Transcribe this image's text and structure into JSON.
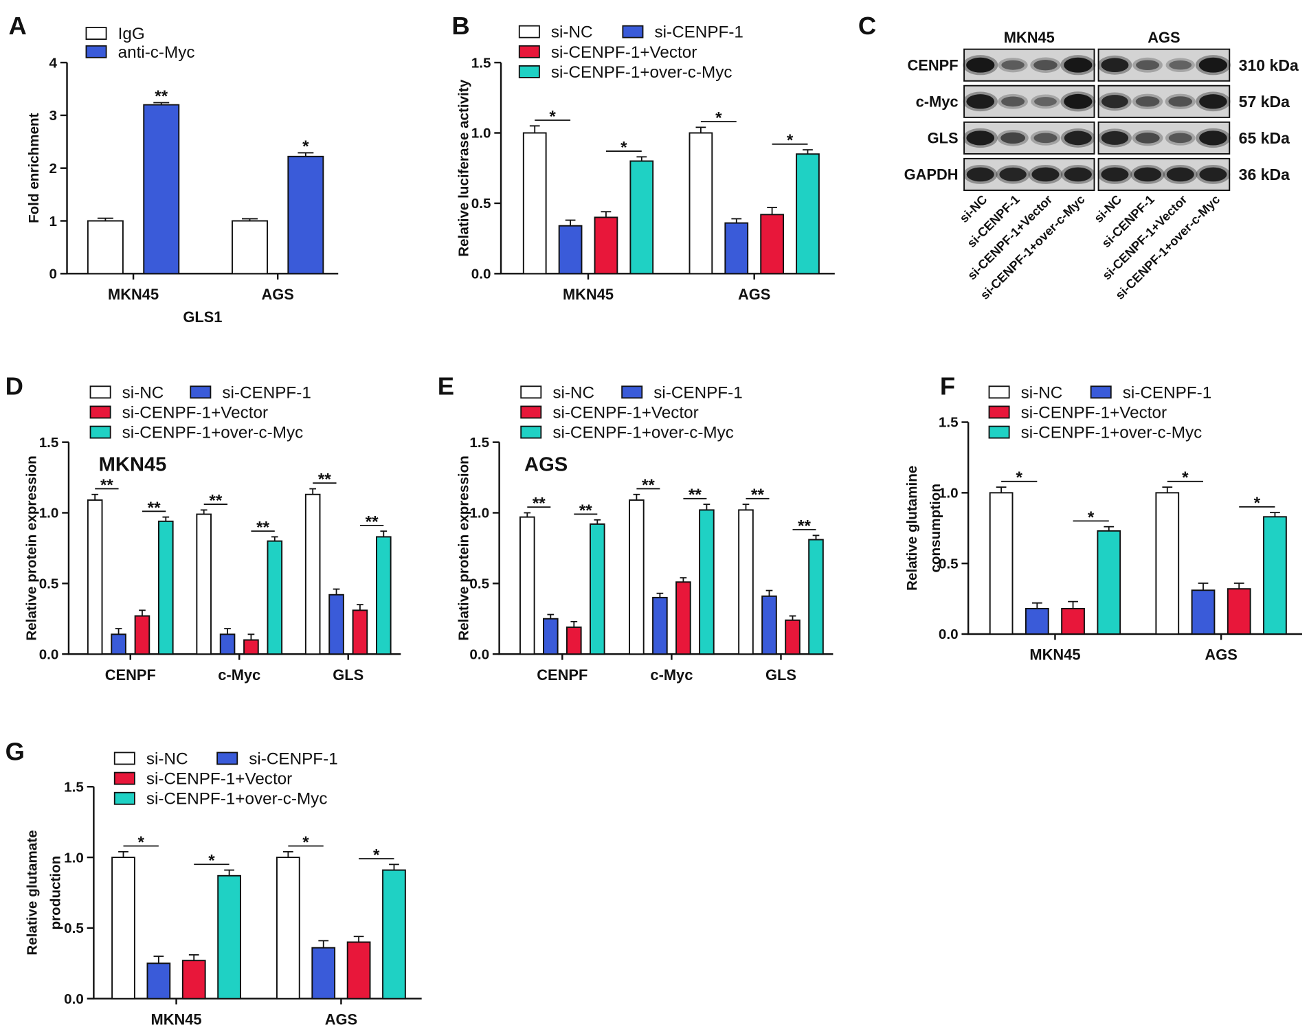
{
  "chart_data": [
    {
      "panel": "A",
      "type": "bar",
      "ylabel": [
        "Fold enrichment"
      ],
      "xlabel": "GLS1",
      "ylim": [
        0,
        4
      ],
      "yticks": [
        0,
        1,
        2,
        3,
        4
      ],
      "ytick_labels": [
        "0",
        "1",
        "2",
        "3",
        "4"
      ],
      "categories": [
        "MKN45",
        "AGS"
      ],
      "series": [
        {
          "name": "IgG",
          "color": "#ffffff",
          "values": [
            1.0,
            1.0
          ],
          "errors": [
            0.05,
            0.04
          ]
        },
        {
          "name": "anti-c-Myc",
          "color": "#3a5bd9",
          "values": [
            3.2,
            2.22
          ],
          "errors": [
            0.04,
            0.07
          ]
        }
      ],
      "significance": [
        {
          "category": 0,
          "bars": [
            1
          ],
          "label": "**"
        },
        {
          "category": 1,
          "bars": [
            1
          ],
          "label": "*"
        }
      ],
      "legend": "top-left",
      "grid": false
    },
    {
      "panel": "B",
      "type": "bar",
      "ylabel": [
        "Relative luciferase activity"
      ],
      "ylim": [
        0,
        1.5
      ],
      "yticks": [
        0,
        0.5,
        1.0,
        1.5
      ],
      "ytick_labels": [
        "0.0",
        "0.5",
        "1.0",
        "1.5"
      ],
      "categories": [
        "MKN45",
        "AGS"
      ],
      "series": [
        {
          "name": "si-NC",
          "color": "#ffffff",
          "values": [
            1.0,
            1.0
          ],
          "errors": [
            0.05,
            0.04
          ]
        },
        {
          "name": "si-CENPF-1",
          "color": "#3a5bd9",
          "values": [
            0.34,
            0.36
          ],
          "errors": [
            0.04,
            0.03
          ]
        },
        {
          "name": "si-CENPF-1+Vector",
          "color": "#e8173a",
          "values": [
            0.4,
            0.42
          ],
          "errors": [
            0.04,
            0.05
          ]
        },
        {
          "name": "si-CENPF-1+over-c-Myc",
          "color": "#1fd1c4",
          "values": [
            0.8,
            0.85
          ],
          "errors": [
            0.03,
            0.03
          ]
        }
      ],
      "significance": [
        {
          "category": 0,
          "bars": [
            0,
            1
          ],
          "label": "*"
        },
        {
          "category": 0,
          "bars": [
            2,
            3
          ],
          "label": "*"
        },
        {
          "category": 1,
          "bars": [
            0,
            1
          ],
          "label": "*"
        },
        {
          "category": 1,
          "bars": [
            2,
            3
          ],
          "label": "*"
        }
      ],
      "legend": "top-left",
      "grid": false
    },
    {
      "panel": "D",
      "type": "bar",
      "title": "MKN45",
      "ylabel": [
        "Relative protein expression"
      ],
      "ylim": [
        0,
        1.5
      ],
      "yticks": [
        0,
        0.5,
        1.0,
        1.5
      ],
      "ytick_labels": [
        "0.0",
        "0.5",
        "1.0",
        "1.5"
      ],
      "categories": [
        "CENPF",
        "c-Myc",
        "GLS"
      ],
      "series": [
        {
          "name": "si-NC",
          "color": "#ffffff",
          "values": [
            1.09,
            0.99,
            1.13
          ],
          "errors": [
            0.04,
            0.03,
            0.04
          ]
        },
        {
          "name": "si-CENPF-1",
          "color": "#3a5bd9",
          "values": [
            0.14,
            0.14,
            0.42
          ],
          "errors": [
            0.04,
            0.04,
            0.04
          ]
        },
        {
          "name": "si-CENPF-1+Vector",
          "color": "#e8173a",
          "values": [
            0.27,
            0.1,
            0.31
          ],
          "errors": [
            0.04,
            0.04,
            0.04
          ]
        },
        {
          "name": "si-CENPF-1+over-c-Myc",
          "color": "#1fd1c4",
          "values": [
            0.94,
            0.8,
            0.83
          ],
          "errors": [
            0.03,
            0.03,
            0.04
          ]
        }
      ],
      "significance": [
        {
          "category": 0,
          "bars": [
            0,
            1
          ],
          "label": "**"
        },
        {
          "category": 0,
          "bars": [
            2,
            3
          ],
          "label": "**"
        },
        {
          "category": 1,
          "bars": [
            0,
            1
          ],
          "label": "**"
        },
        {
          "category": 1,
          "bars": [
            2,
            3
          ],
          "label": "**"
        },
        {
          "category": 2,
          "bars": [
            0,
            1
          ],
          "label": "**"
        },
        {
          "category": 2,
          "bars": [
            2,
            3
          ],
          "label": "**"
        }
      ],
      "legend": "top-left",
      "grid": false
    },
    {
      "panel": "E",
      "type": "bar",
      "title": "AGS",
      "ylabel": [
        "Relative protein expression"
      ],
      "ylim": [
        0,
        1.5
      ],
      "yticks": [
        0,
        0.5,
        1.0,
        1.5
      ],
      "ytick_labels": [
        "0.0",
        "0.5",
        "1.0",
        "1.5"
      ],
      "categories": [
        "CENPF",
        "c-Myc",
        "GLS"
      ],
      "series": [
        {
          "name": "si-NC",
          "color": "#ffffff",
          "values": [
            0.97,
            1.09,
            1.02
          ],
          "errors": [
            0.03,
            0.04,
            0.04
          ]
        },
        {
          "name": "si-CENPF-1",
          "color": "#3a5bd9",
          "values": [
            0.25,
            0.4,
            0.41
          ],
          "errors": [
            0.03,
            0.03,
            0.04
          ]
        },
        {
          "name": "si-CENPF-1+Vector",
          "color": "#e8173a",
          "values": [
            0.19,
            0.51,
            0.24
          ],
          "errors": [
            0.04,
            0.03,
            0.03
          ]
        },
        {
          "name": "si-CENPF-1+over-c-Myc",
          "color": "#1fd1c4",
          "values": [
            0.92,
            1.02,
            0.81
          ],
          "errors": [
            0.03,
            0.04,
            0.03
          ]
        }
      ],
      "significance": [
        {
          "category": 0,
          "bars": [
            0,
            1
          ],
          "label": "**"
        },
        {
          "category": 0,
          "bars": [
            2,
            3
          ],
          "label": "**"
        },
        {
          "category": 1,
          "bars": [
            0,
            1
          ],
          "label": "**"
        },
        {
          "category": 1,
          "bars": [
            2,
            3
          ],
          "label": "**"
        },
        {
          "category": 2,
          "bars": [
            0,
            1
          ],
          "label": "**"
        },
        {
          "category": 2,
          "bars": [
            2,
            3
          ],
          "label": "**"
        }
      ],
      "legend": "top-left",
      "grid": false
    },
    {
      "panel": "F",
      "type": "bar",
      "ylabel": [
        "Relative glutamine",
        "consumption"
      ],
      "ylim": [
        0,
        1.5
      ],
      "yticks": [
        0,
        0.5,
        1.0,
        1.5
      ],
      "ytick_labels": [
        "0.0",
        "0.5",
        "1.0",
        "1.5"
      ],
      "categories": [
        "MKN45",
        "AGS"
      ],
      "series": [
        {
          "name": "si-NC",
          "color": "#ffffff",
          "values": [
            1.0,
            1.0
          ],
          "errors": [
            0.04,
            0.04
          ]
        },
        {
          "name": "si-CENPF-1",
          "color": "#3a5bd9",
          "values": [
            0.18,
            0.31
          ],
          "errors": [
            0.04,
            0.05
          ]
        },
        {
          "name": "si-CENPF-1+Vector",
          "color": "#e8173a",
          "values": [
            0.18,
            0.32
          ],
          "errors": [
            0.05,
            0.04
          ]
        },
        {
          "name": "si-CENPF-1+over-c-Myc",
          "color": "#1fd1c4",
          "values": [
            0.73,
            0.83
          ],
          "errors": [
            0.03,
            0.03
          ]
        }
      ],
      "significance": [
        {
          "category": 0,
          "bars": [
            0,
            1
          ],
          "label": "*"
        },
        {
          "category": 0,
          "bars": [
            2,
            3
          ],
          "label": "*"
        },
        {
          "category": 1,
          "bars": [
            0,
            1
          ],
          "label": "*"
        },
        {
          "category": 1,
          "bars": [
            2,
            3
          ],
          "label": "*"
        }
      ],
      "legend": "top-left",
      "grid": false
    },
    {
      "panel": "G",
      "type": "bar",
      "ylabel": [
        "Relative glutamate",
        "production"
      ],
      "ylim": [
        0,
        1.5
      ],
      "yticks": [
        0,
        0.5,
        1.0,
        1.5
      ],
      "ytick_labels": [
        "0.0",
        "0.5",
        "1.0",
        "1.5"
      ],
      "categories": [
        "MKN45",
        "AGS"
      ],
      "series": [
        {
          "name": "si-NC",
          "color": "#ffffff",
          "values": [
            1.0,
            1.0
          ],
          "errors": [
            0.04,
            0.04
          ]
        },
        {
          "name": "si-CENPF-1",
          "color": "#3a5bd9",
          "values": [
            0.25,
            0.36
          ],
          "errors": [
            0.05,
            0.05
          ]
        },
        {
          "name": "si-CENPF-1+Vector",
          "color": "#e8173a",
          "values": [
            0.27,
            0.4
          ],
          "errors": [
            0.04,
            0.04
          ]
        },
        {
          "name": "si-CENPF-1+over-c-Myc",
          "color": "#1fd1c4",
          "values": [
            0.87,
            0.91
          ],
          "errors": [
            0.04,
            0.04
          ]
        }
      ],
      "significance": [
        {
          "category": 0,
          "bars": [
            0,
            1
          ],
          "label": "*"
        },
        {
          "category": 0,
          "bars": [
            2,
            3
          ],
          "label": "*"
        },
        {
          "category": 1,
          "bars": [
            0,
            1
          ],
          "label": "*"
        },
        {
          "category": 1,
          "bars": [
            2,
            3
          ],
          "label": "*"
        }
      ],
      "legend": "top-left",
      "grid": false
    }
  ],
  "blot": {
    "panel": "C",
    "cell_lines": [
      "MKN45",
      "AGS"
    ],
    "lanes": [
      "si-NC",
      "si-CENPF-1",
      "si-CENPF-1+Vector",
      "si-CENPF-1+over-c-Myc"
    ],
    "rows": [
      {
        "protein": "CENPF",
        "size": "310 kDa",
        "band_intensity": [
          [
            1.0,
            0.35,
            0.45,
            1.0
          ],
          [
            0.9,
            0.4,
            0.3,
            1.0
          ]
        ]
      },
      {
        "protein": "c-Myc",
        "size": "57 kDa",
        "band_intensity": [
          [
            0.95,
            0.4,
            0.3,
            1.0
          ],
          [
            0.8,
            0.45,
            0.45,
            0.95
          ]
        ]
      },
      {
        "protein": "GLS",
        "size": "65 kDa",
        "band_intensity": [
          [
            0.95,
            0.55,
            0.4,
            0.9
          ],
          [
            0.85,
            0.5,
            0.4,
            0.95
          ]
        ]
      },
      {
        "protein": "GAPDH",
        "size": "36 kDa",
        "band_intensity": [
          [
            0.9,
            0.85,
            0.9,
            0.9
          ],
          [
            0.9,
            0.9,
            0.9,
            0.9
          ]
        ]
      }
    ]
  }
}
